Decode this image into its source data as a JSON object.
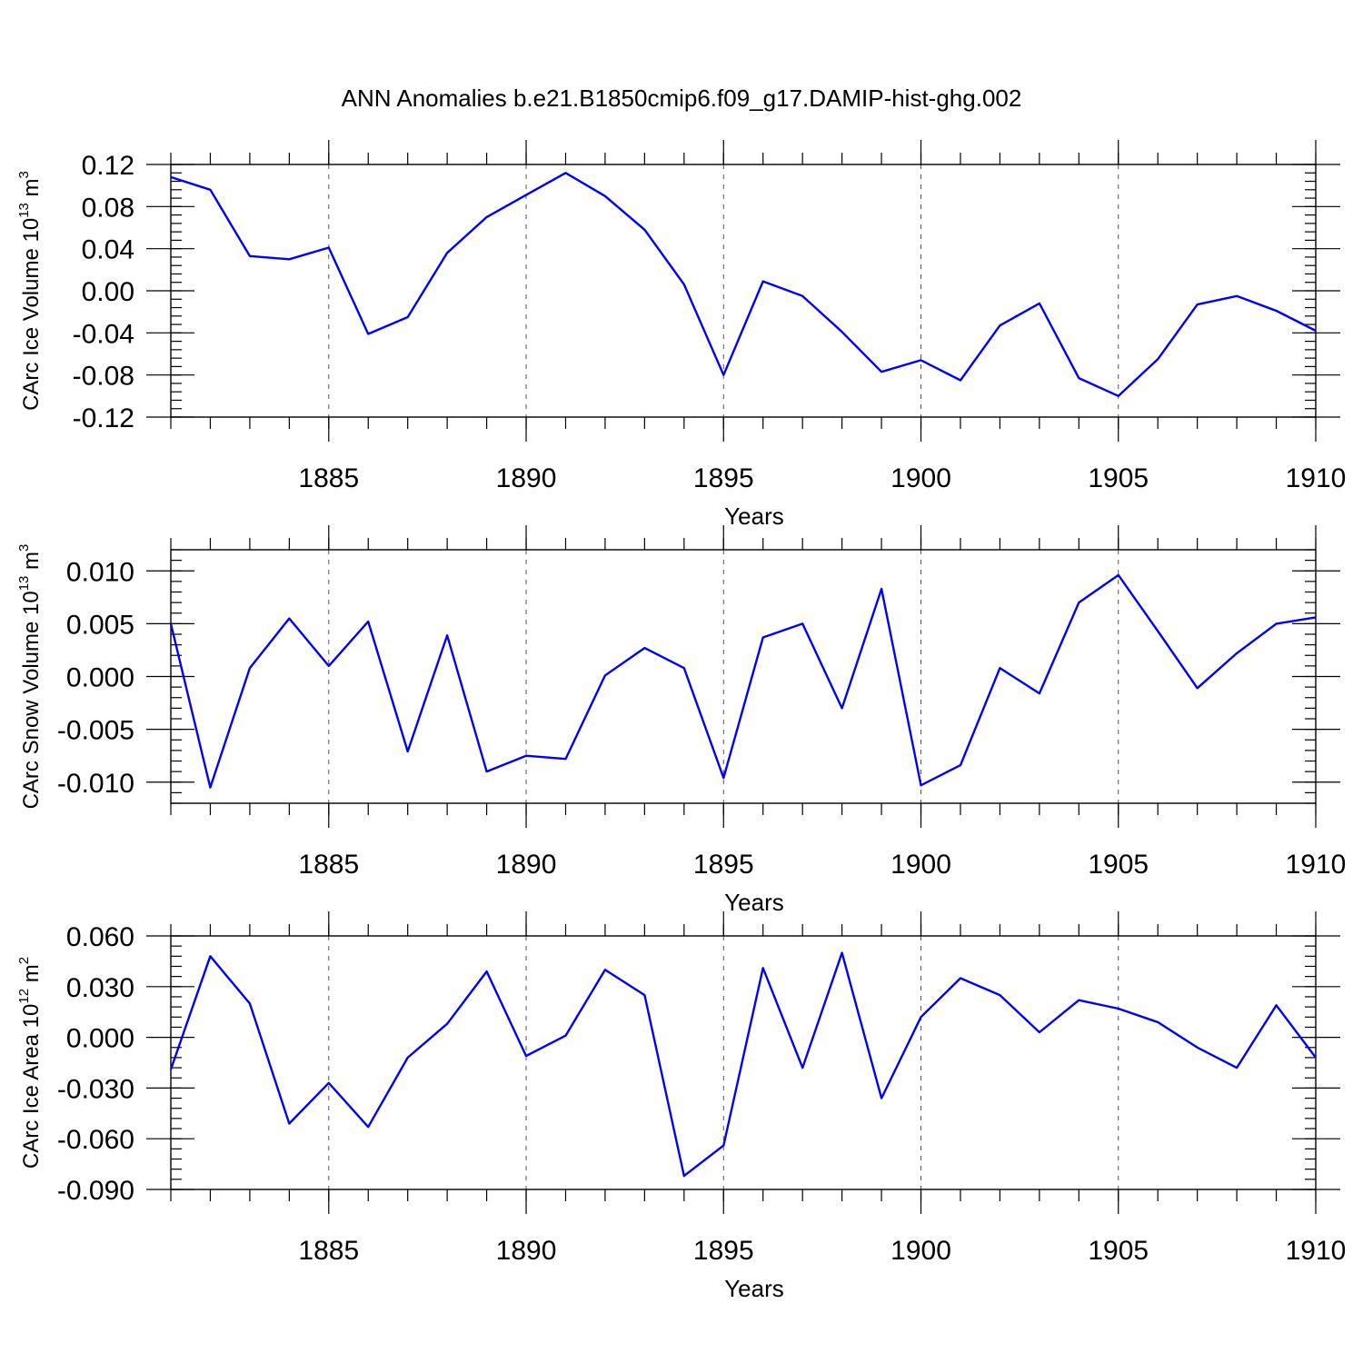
{
  "title": "ANN Anomalies b.e21.B1850cmip6.f09_g17.DAMIP-hist-ghg.002",
  "colors": {
    "line": "#0000ff",
    "frame": "#000000",
    "grid": "#555555"
  },
  "chart_data": [
    {
      "type": "line",
      "ylabel": {
        "text": "CArc Ice Volume 10",
        "exponent": "13",
        "unit": " m",
        "unit_exponent": "3"
      },
      "xlabel": "Years",
      "xlim": [
        1881,
        1910
      ],
      "ylim": [
        -0.12,
        0.12
      ],
      "xticks": [
        1885,
        1890,
        1895,
        1900,
        1905,
        1910
      ],
      "xtick_labels": [
        "1885",
        "1890",
        "1895",
        "1900",
        "1905",
        "1910"
      ],
      "yticks": [
        -0.12,
        -0.08,
        -0.04,
        0.0,
        0.04,
        0.08,
        0.12
      ],
      "ytick_labels": [
        "-0.12",
        "-0.08",
        "-0.04",
        "0.00",
        "0.04",
        "0.08",
        "0.12"
      ],
      "y_minor_step": 0.008,
      "grid": "dashed vertical lines at labelled years",
      "x": [
        1881,
        1882,
        1883,
        1884,
        1885,
        1886,
        1887,
        1888,
        1889,
        1890,
        1891,
        1892,
        1893,
        1894,
        1895,
        1896,
        1897,
        1898,
        1899,
        1900,
        1901,
        1902,
        1903,
        1904,
        1905,
        1906,
        1907,
        1908,
        1909,
        1910
      ],
      "values": [
        0.108,
        0.096,
        0.033,
        0.03,
        0.041,
        -0.041,
        -0.025,
        0.036,
        0.07,
        0.091,
        0.112,
        0.09,
        0.058,
        0.006,
        -0.08,
        0.009,
        -0.005,
        -0.039,
        -0.077,
        -0.066,
        -0.085,
        -0.033,
        -0.012,
        -0.083,
        -0.1,
        -0.065,
        -0.013,
        -0.005,
        -0.019,
        -0.038
      ]
    },
    {
      "type": "line",
      "ylabel": {
        "text": "CArc Snow Volume 10",
        "exponent": "13",
        "unit": " m",
        "unit_exponent": "3"
      },
      "xlabel": "Years",
      "xlim": [
        1881,
        1910
      ],
      "ylim": [
        -0.012,
        0.012
      ],
      "xticks": [
        1885,
        1890,
        1895,
        1900,
        1905,
        1910
      ],
      "xtick_labels": [
        "1885",
        "1890",
        "1895",
        "1900",
        "1905",
        "1910"
      ],
      "yticks": [
        -0.01,
        -0.005,
        0.0,
        0.005,
        0.01
      ],
      "ytick_labels": [
        "-0.010",
        "-0.005",
        "0.000",
        "0.005",
        "0.010"
      ],
      "y_minor_step": 0.001,
      "grid": "dashed vertical lines at labelled years",
      "x": [
        1881,
        1882,
        1883,
        1884,
        1885,
        1886,
        1887,
        1888,
        1889,
        1890,
        1891,
        1892,
        1893,
        1894,
        1895,
        1896,
        1897,
        1898,
        1899,
        1900,
        1901,
        1902,
        1903,
        1904,
        1905,
        1906,
        1907,
        1908,
        1909,
        1910
      ],
      "values": [
        0.005,
        -0.0105,
        0.0008,
        0.0055,
        0.001,
        0.0052,
        -0.0071,
        0.0039,
        -0.009,
        -0.0075,
        -0.0078,
        0.0001,
        0.0027,
        0.0008,
        -0.0096,
        0.0037,
        0.005,
        -0.003,
        0.0083,
        -0.0103,
        -0.0084,
        0.0008,
        -0.0016,
        0.007,
        0.0096,
        0.0043,
        -0.0011,
        0.0022,
        0.005,
        0.0056
      ]
    },
    {
      "type": "line",
      "ylabel": {
        "text": "CArc Ice Area 10",
        "exponent": "12",
        "unit": " m",
        "unit_exponent": "2"
      },
      "xlabel": "Years",
      "xlim": [
        1881,
        1910
      ],
      "ylim": [
        -0.09,
        0.06
      ],
      "xticks": [
        1885,
        1890,
        1895,
        1900,
        1905,
        1910
      ],
      "xtick_labels": [
        "1885",
        "1890",
        "1895",
        "1900",
        "1905",
        "1910"
      ],
      "yticks": [
        -0.09,
        -0.06,
        -0.03,
        0.0,
        0.03,
        0.06
      ],
      "ytick_labels": [
        "-0.090",
        "-0.060",
        "-0.030",
        "0.000",
        "0.030",
        "0.060"
      ],
      "y_minor_step": 0.006,
      "grid": "dashed vertical lines at labelled years",
      "x": [
        1881,
        1882,
        1883,
        1884,
        1885,
        1886,
        1887,
        1888,
        1889,
        1890,
        1891,
        1892,
        1893,
        1894,
        1895,
        1896,
        1897,
        1898,
        1899,
        1900,
        1901,
        1902,
        1903,
        1904,
        1905,
        1906,
        1907,
        1908,
        1909,
        1910
      ],
      "values": [
        -0.019,
        0.048,
        0.02,
        -0.051,
        -0.027,
        -0.053,
        -0.012,
        0.008,
        0.039,
        -0.011,
        0.001,
        0.04,
        0.025,
        -0.082,
        -0.064,
        0.041,
        -0.018,
        0.05,
        -0.036,
        0.012,
        0.035,
        0.025,
        0.003,
        0.022,
        0.017,
        0.009,
        -0.006,
        -0.018,
        0.019,
        -0.012
      ]
    }
  ]
}
